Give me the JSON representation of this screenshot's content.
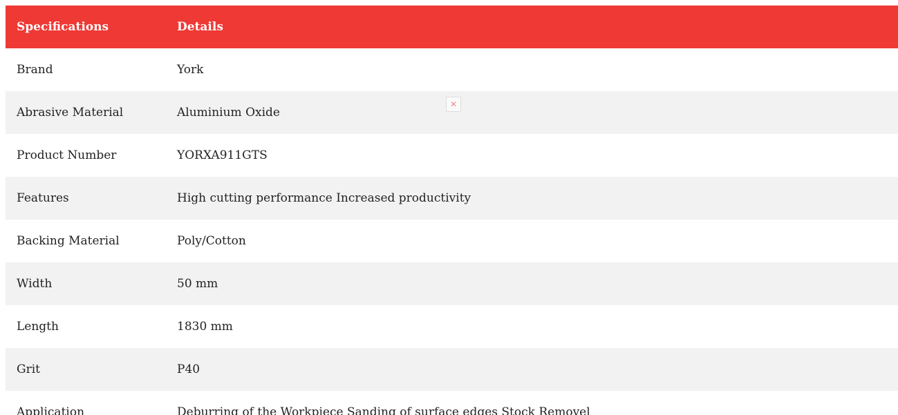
{
  "table": {
    "header": [
      "Specifications",
      "Details"
    ],
    "rows": [
      [
        "Brand",
        "York"
      ],
      [
        "Abrasive Material",
        "Aluminium Oxide"
      ],
      [
        "Product Number",
        "YORXA911GTS"
      ],
      [
        "Features",
        "High cutting performance Increased productivity"
      ],
      [
        "Backing Material",
        "Poly/Cotton"
      ],
      [
        "Width",
        "50 mm"
      ],
      [
        "Length",
        "1830 mm"
      ],
      [
        "Grit",
        "P40"
      ],
      [
        "Application",
        "Deburring of the Workpiece Sanding of surface edges Stock Removel"
      ]
    ]
  }
}
